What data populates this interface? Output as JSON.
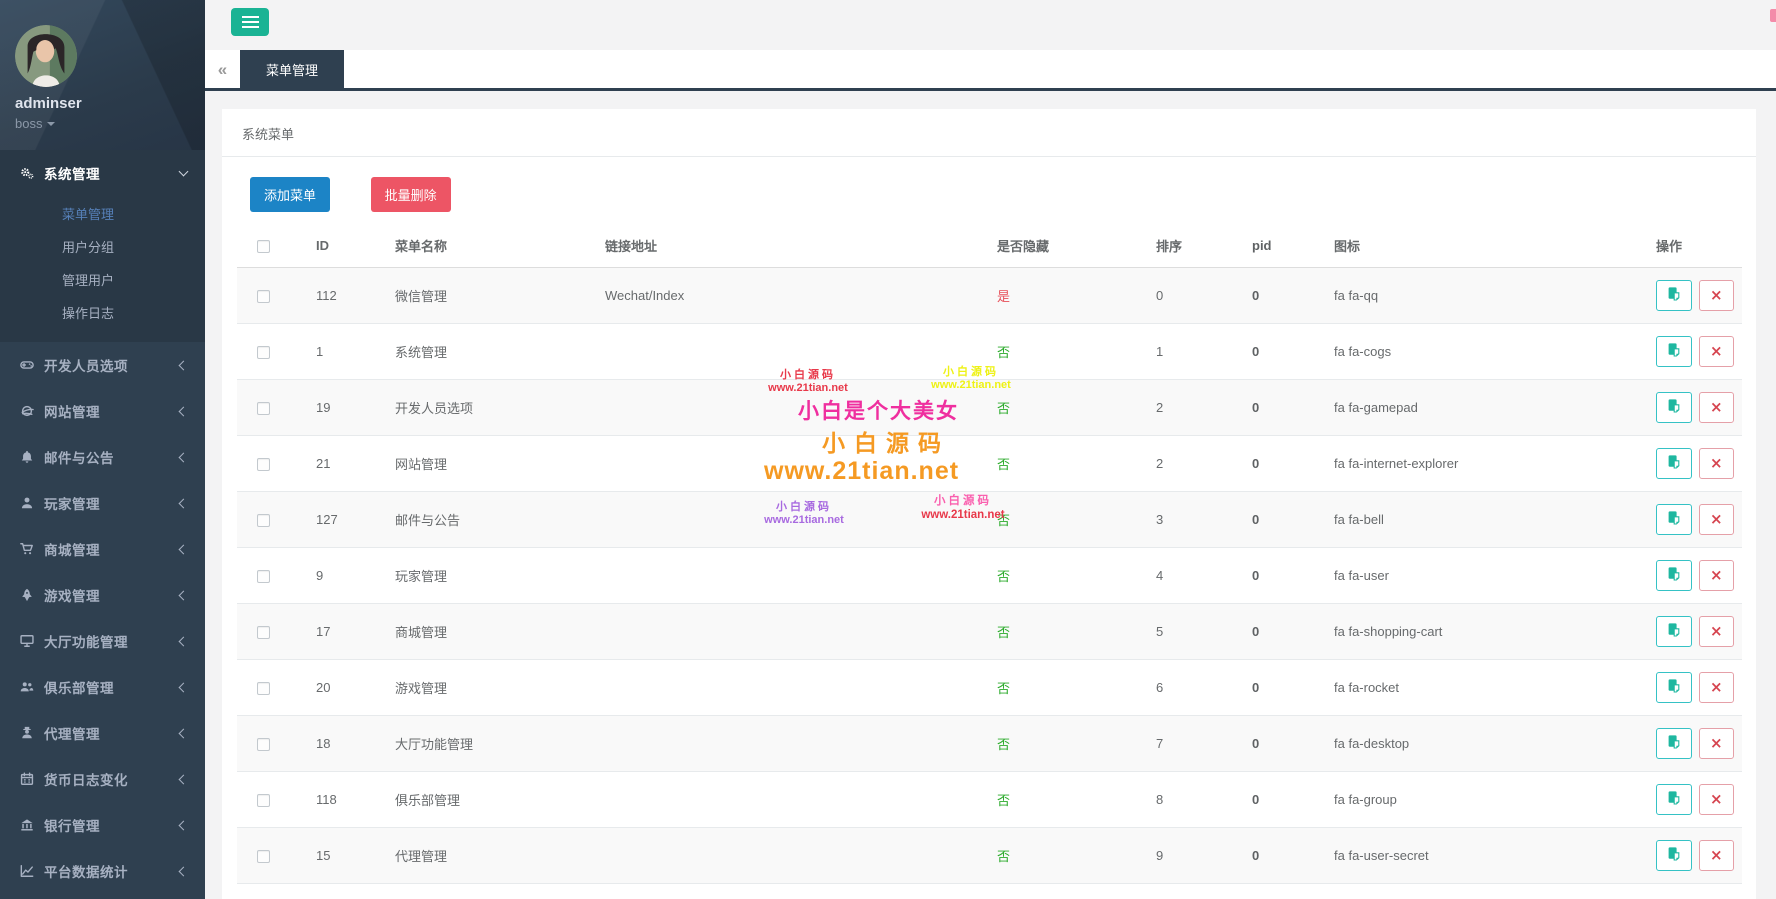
{
  "colors": {
    "sidebar_bg": "#2f4050",
    "sidebar_open_bg": "#293846",
    "sidebar_text": "#a7b1c2",
    "active_submenu": "#5680b8",
    "accent_teal": "#1ab394",
    "btn_blue": "#1c84c6",
    "btn_red": "#ed5565",
    "tab_dark": "#2f4050",
    "page_bg": "#f3f3f4",
    "hidden_yes": "#e7505a",
    "hidden_no": "#2cab2c",
    "wm_red": "#e8394a",
    "wm_yellow": "#eef215",
    "wm_pink": "#ef2f9f",
    "wm_orange": "#f59a23",
    "wm_purple": "#a86ae0"
  },
  "sidebar": {
    "user": {
      "name": "adminser",
      "role": "boss"
    },
    "sections": [
      {
        "label": "系统管理",
        "icon": "cogs-icon",
        "expanded": true,
        "children": [
          {
            "label": "菜单管理",
            "active": true
          },
          {
            "label": "用户分组"
          },
          {
            "label": "管理用户"
          },
          {
            "label": "操作日志"
          }
        ]
      },
      {
        "label": "开发人员选项",
        "icon": "gamepad-icon"
      },
      {
        "label": "网站管理",
        "icon": "internet-explorer-icon"
      },
      {
        "label": "邮件与公告",
        "icon": "bell-icon"
      },
      {
        "label": "玩家管理",
        "icon": "user-icon"
      },
      {
        "label": "商城管理",
        "icon": "shopping-cart-icon"
      },
      {
        "label": "游戏管理",
        "icon": "rocket-icon"
      },
      {
        "label": "大厅功能管理",
        "icon": "desktop-icon"
      },
      {
        "label": "俱乐部管理",
        "icon": "group-icon"
      },
      {
        "label": "代理管理",
        "icon": "user-secret-icon"
      },
      {
        "label": "货币日志变化",
        "icon": "calendar-icon"
      },
      {
        "label": "银行管理",
        "icon": "bank-icon"
      },
      {
        "label": "平台数据统计",
        "icon": "line-chart-icon"
      }
    ]
  },
  "topbar": {
    "tabs": [
      {
        "label": "菜单管理",
        "active": true
      }
    ]
  },
  "panel": {
    "title": "系统菜单",
    "buttons": {
      "add": "添加菜单",
      "batch_delete": "批量删除"
    }
  },
  "table": {
    "headers": {
      "id": "ID",
      "name": "菜单名称",
      "link": "链接地址",
      "hidden": "是否隐藏",
      "sort": "排序",
      "pid": "pid",
      "icon": "图标",
      "action": "操作"
    },
    "rows": [
      {
        "id": "112",
        "name": "微信管理",
        "link": "Wechat/Index",
        "hidden": "是",
        "hidden_state": "yes",
        "sort": "0",
        "pid": "0",
        "icon": "fa fa-qq"
      },
      {
        "id": "1",
        "name": "系统管理",
        "link": "",
        "hidden": "否",
        "hidden_state": "no",
        "sort": "1",
        "pid": "0",
        "icon": "fa fa-cogs"
      },
      {
        "id": "19",
        "name": "开发人员选项",
        "link": "",
        "hidden": "否",
        "hidden_state": "no",
        "sort": "2",
        "pid": "0",
        "icon": "fa fa-gamepad"
      },
      {
        "id": "21",
        "name": "网站管理",
        "link": "",
        "hidden": "否",
        "hidden_state": "no",
        "sort": "2",
        "pid": "0",
        "icon": "fa fa-internet-explorer"
      },
      {
        "id": "127",
        "name": "邮件与公告",
        "link": "",
        "hidden": "否",
        "hidden_state": "no",
        "sort": "3",
        "pid": "0",
        "icon": "fa fa-bell"
      },
      {
        "id": "9",
        "name": "玩家管理",
        "link": "",
        "hidden": "否",
        "hidden_state": "no",
        "sort": "4",
        "pid": "0",
        "icon": "fa fa-user"
      },
      {
        "id": "17",
        "name": "商城管理",
        "link": "",
        "hidden": "否",
        "hidden_state": "no",
        "sort": "5",
        "pid": "0",
        "icon": "fa fa-shopping-cart"
      },
      {
        "id": "20",
        "name": "游戏管理",
        "link": "",
        "hidden": "否",
        "hidden_state": "no",
        "sort": "6",
        "pid": "0",
        "icon": "fa fa-rocket"
      },
      {
        "id": "18",
        "name": "大厅功能管理",
        "link": "",
        "hidden": "否",
        "hidden_state": "no",
        "sort": "7",
        "pid": "0",
        "icon": "fa fa-desktop"
      },
      {
        "id": "118",
        "name": "俱乐部管理",
        "link": "",
        "hidden": "否",
        "hidden_state": "no",
        "sort": "8",
        "pid": "0",
        "icon": "fa fa-group"
      },
      {
        "id": "15",
        "name": "代理管理",
        "link": "",
        "hidden": "否",
        "hidden_state": "no",
        "sort": "9",
        "pid": "0",
        "icon": "fa fa-user-secret"
      }
    ]
  },
  "watermarks": {
    "stamp1": {
      "text": "小白源码",
      "url": "www.21tian.net"
    },
    "stamp2": {
      "text": "小白源码",
      "url": "www.21tian.net"
    },
    "banner": {
      "text": "小白是个大美女"
    },
    "big_text": {
      "text": "小白源码"
    },
    "big_url": {
      "text": "www.21tian.net"
    },
    "stamp3": {
      "text": "小白源码",
      "url": "www.21tian.net"
    },
    "stamp4": {
      "text": "小白源码",
      "url": "www.21tian.net"
    }
  }
}
